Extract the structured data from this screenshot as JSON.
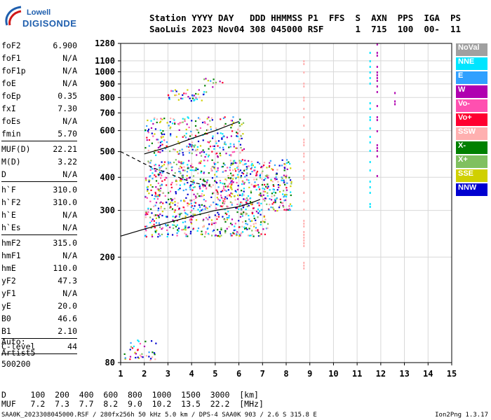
{
  "logo": {
    "line1": "Lowell",
    "line2": "DIGISONDE"
  },
  "header": {
    "labels": "Station YYYY DAY   DDD HHMMSS P1  FFS  S  AXN  PPS  IGA  PS",
    "values": "SaoLuis 2023 Nov04 308 045000 RSF      1  715  100  00-  11"
  },
  "params": [
    {
      "name": "foF2",
      "value": "6.900"
    },
    {
      "name": "foF1",
      "value": "N/A"
    },
    {
      "name": "foF1p",
      "value": "N/A"
    },
    {
      "name": "foE",
      "value": "N/A"
    },
    {
      "name": "foEp",
      "value": "0.35"
    },
    {
      "name": "fxI",
      "value": "7.30"
    },
    {
      "name": "foEs",
      "value": "N/A"
    },
    {
      "name": "fmin",
      "value": "5.70",
      "sep": true
    },
    {
      "name": "MUF(D)",
      "value": "22.21"
    },
    {
      "name": "M(D)",
      "value": "3.22"
    },
    {
      "name": "D",
      "value": "N/A",
      "sep": true
    },
    {
      "name": "h`F",
      "value": "310.0"
    },
    {
      "name": "h`F2",
      "value": "310.0"
    },
    {
      "name": "h`E",
      "value": "N/A"
    },
    {
      "name": "h`Es",
      "value": "N/A",
      "sep": true
    },
    {
      "name": "hmF2",
      "value": "315.0"
    },
    {
      "name": "hmF1",
      "value": "N/A"
    },
    {
      "name": "hmE",
      "value": "110.0"
    },
    {
      "name": "yF2",
      "value": "47.3"
    },
    {
      "name": "yF1",
      "value": "N/A"
    },
    {
      "name": "yE",
      "value": "20.0"
    },
    {
      "name": "B0",
      "value": "46.6"
    },
    {
      "name": "B1",
      "value": "2.10",
      "sep": true
    },
    {
      "name": "C-level",
      "value": "44",
      "sep": true
    }
  ],
  "auto": {
    "line1": "Auto:",
    "line2": "Artist5",
    "line3": "500200"
  },
  "legend": [
    {
      "label": "NoVal",
      "color": "#a0a0a0"
    },
    {
      "label": "NNE",
      "color": "#00e5ff"
    },
    {
      "label": "E",
      "color": "#30a0ff"
    },
    {
      "label": "W",
      "color": "#b000b0"
    },
    {
      "label": "Vo-",
      "color": "#ff50b0"
    },
    {
      "label": "Vo+",
      "color": "#ff0030"
    },
    {
      "label": "SSW",
      "color": "#ffb0b0"
    },
    {
      "label": "X-",
      "color": "#008000"
    },
    {
      "label": "X+",
      "color": "#80c060"
    },
    {
      "label": "SSE",
      "color": "#d0d000"
    },
    {
      "label": "NNW",
      "color": "#0000d0"
    }
  ],
  "muf_table": {
    "row_d": "D     100  200  400  600  800  1000  1500  3000  [km]",
    "row_muf": "MUF   7.2  7.3  7.7  8.2  9.0  10.2  13.5  22.2  [MHz]"
  },
  "footer": "SAA0K_2023308045000.RSF / 280fx256h 50 kHz 5.0 km / DPS-4 SAA0K 903 / 2.6 S 315.8 E",
  "version": "Ion2Png 1.3.17",
  "chart_data": {
    "type": "scatter",
    "x_ticks": [
      1,
      2,
      3,
      4,
      5,
      6,
      7,
      8,
      9,
      10,
      11,
      12,
      13,
      14,
      15
    ],
    "y_ticks": [
      80,
      200,
      300,
      400,
      500,
      600,
      700,
      800,
      900,
      1000,
      1100,
      1280
    ],
    "xlim": [
      1,
      15
    ],
    "ylim": [
      80,
      1280
    ],
    "y_scale": "log",
    "grid": true,
    "legend_position": "right",
    "traces": [
      {
        "name": "F2 trace",
        "x": [
          1.0,
          2.0,
          3.0,
          4.0,
          5.0,
          6.0,
          6.5,
          6.9
        ],
        "y": [
          240,
          255,
          270,
          285,
          300,
          310,
          320,
          330
        ]
      },
      {
        "name": "2F trace",
        "x": [
          2.0,
          3.0,
          4.0,
          5.0,
          6.0
        ],
        "y": [
          490,
          520,
          560,
          600,
          650
        ]
      }
    ],
    "clusters": [
      {
        "x_range": [
          2.0,
          7.2
        ],
        "y_range": [
          240,
          470
        ],
        "density": 900
      },
      {
        "x_range": [
          2.0,
          6.2
        ],
        "y_range": [
          480,
          680
        ],
        "density": 260
      },
      {
        "x_range": [
          2.9,
          4.6
        ],
        "y_range": [
          780,
          860
        ],
        "density": 40
      },
      {
        "x_range": [
          4.3,
          5.3
        ],
        "y_range": [
          880,
          950
        ],
        "density": 12
      },
      {
        "x_range": [
          1.1,
          2.5
        ],
        "y_range": [
          82,
          98
        ],
        "density": 40
      },
      {
        "x_range": [
          7.2,
          8.2
        ],
        "y_range": [
          300,
          470
        ],
        "density": 120
      }
    ],
    "vertical_streaks": [
      {
        "x": 11.85,
        "y_range": [
          380,
          1280
        ],
        "color": "#b000b0"
      },
      {
        "x": 12.6,
        "y_range": [
          760,
          860
        ],
        "color": "#b000b0"
      },
      {
        "x": 12.6,
        "y_range": [
          82,
          90
        ],
        "color": "#b000b0"
      },
      {
        "x": 11.55,
        "y_range": [
          300,
          1280
        ],
        "color": "#00e5ff"
      },
      {
        "x": 8.75,
        "y_range": [
          180,
          1280
        ],
        "color": "#ffb0b0"
      }
    ],
    "model_curve": {
      "x": [
        1.0,
        2.0,
        2.5,
        3.0,
        3.6,
        4.2,
        4.8
      ],
      "y": [
        500,
        450,
        430,
        415,
        395,
        380,
        370
      ]
    }
  }
}
